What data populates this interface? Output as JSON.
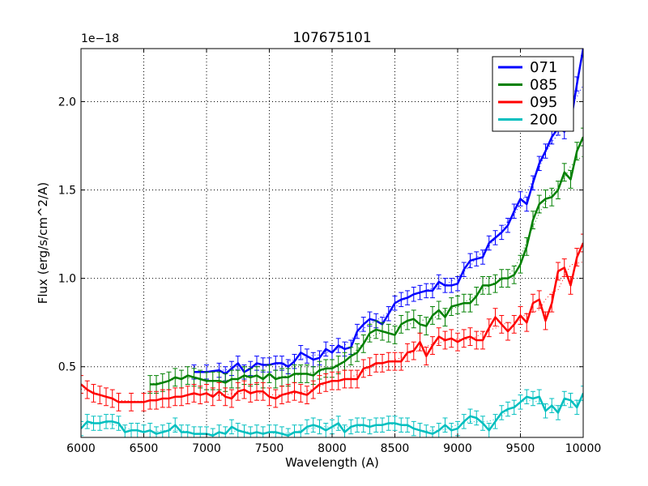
{
  "chart_data": {
    "type": "line",
    "title": "107675101",
    "xlabel": "Wavelength (A)",
    "ylabel": "Flux (erg/s/cm^2/A)",
    "y_scale_label": "1e−18",
    "xlim": [
      6000,
      10000
    ],
    "ylim": [
      0.1,
      2.3
    ],
    "xticks": [
      6000,
      6500,
      7000,
      7500,
      8000,
      8500,
      9000,
      9500,
      10000
    ],
    "xtick_labels": [
      "6000",
      "6500",
      "7000",
      "7500",
      "8000",
      "8500",
      "9000",
      "9500",
      "10000"
    ],
    "yticks": [
      0.5,
      1.0,
      1.5,
      2.0
    ],
    "ytick_labels": [
      "0.5",
      "1.0",
      "1.5",
      "2.0"
    ],
    "grid": true,
    "legend_position": "top-right",
    "series": [
      {
        "name": "071",
        "color": "#0000ff",
        "x": [
          6900,
          7000,
          7100,
          7150,
          7200,
          7250,
          7300,
          7350,
          7400,
          7450,
          7500,
          7550,
          7600,
          7650,
          7700,
          7750,
          7800,
          7850,
          7900,
          7950,
          8000,
          8050,
          8100,
          8150,
          8200,
          8250,
          8300,
          8350,
          8400,
          8450,
          8500,
          8550,
          8600,
          8650,
          8700,
          8750,
          8800,
          8850,
          8900,
          8950,
          9000,
          9050,
          9100,
          9150,
          9200,
          9250,
          9300,
          9350,
          9400,
          9450,
          9500,
          9550,
          9600,
          9650,
          9700,
          9750,
          9800,
          9850,
          9900,
          9950,
          10000
        ],
        "y": [
          0.47,
          0.47,
          0.48,
          0.46,
          0.49,
          0.52,
          0.47,
          0.49,
          0.52,
          0.51,
          0.51,
          0.52,
          0.52,
          0.5,
          0.53,
          0.58,
          0.56,
          0.54,
          0.55,
          0.6,
          0.58,
          0.62,
          0.6,
          0.61,
          0.7,
          0.74,
          0.77,
          0.76,
          0.74,
          0.8,
          0.86,
          0.88,
          0.89,
          0.91,
          0.92,
          0.93,
          0.93,
          0.98,
          0.96,
          0.96,
          0.97,
          1.05,
          1.1,
          1.11,
          1.12,
          1.2,
          1.23,
          1.26,
          1.3,
          1.38,
          1.45,
          1.42,
          1.54,
          1.65,
          1.72,
          1.8,
          1.85,
          1.83,
          1.88,
          2.1,
          2.3
        ],
        "err": 0.04
      },
      {
        "name": "085",
        "color": "#008000",
        "x": [
          6550,
          6600,
          6650,
          6700,
          6750,
          6800,
          6850,
          6900,
          6950,
          7000,
          7050,
          7100,
          7150,
          7200,
          7250,
          7300,
          7350,
          7400,
          7450,
          7500,
          7550,
          7600,
          7650,
          7700,
          7750,
          7800,
          7850,
          7900,
          7950,
          8000,
          8050,
          8100,
          8150,
          8200,
          8250,
          8300,
          8350,
          8400,
          8450,
          8500,
          8550,
          8600,
          8650,
          8700,
          8750,
          8800,
          8850,
          8900,
          8950,
          9000,
          9050,
          9100,
          9150,
          9200,
          9250,
          9300,
          9350,
          9400,
          9450,
          9500,
          9550,
          9600,
          9650,
          9700,
          9750,
          9800,
          9850,
          9900,
          9950,
          10000
        ],
        "y": [
          0.4,
          0.4,
          0.41,
          0.42,
          0.44,
          0.43,
          0.45,
          0.44,
          0.43,
          0.42,
          0.42,
          0.42,
          0.41,
          0.43,
          0.43,
          0.45,
          0.44,
          0.45,
          0.43,
          0.46,
          0.43,
          0.44,
          0.44,
          0.46,
          0.46,
          0.46,
          0.45,
          0.48,
          0.49,
          0.49,
          0.51,
          0.53,
          0.56,
          0.58,
          0.63,
          0.69,
          0.71,
          0.7,
          0.69,
          0.68,
          0.74,
          0.76,
          0.77,
          0.74,
          0.73,
          0.79,
          0.82,
          0.78,
          0.84,
          0.85,
          0.86,
          0.86,
          0.9,
          0.96,
          0.96,
          0.97,
          1.0,
          1.0,
          1.02,
          1.08,
          1.18,
          1.33,
          1.42,
          1.45,
          1.46,
          1.5,
          1.6,
          1.56,
          1.72,
          1.8
        ],
        "err": 0.05
      },
      {
        "name": "095",
        "color": "#ff0000",
        "x": [
          6000,
          6050,
          6100,
          6150,
          6200,
          6250,
          6300,
          6400,
          6500,
          6550,
          6600,
          6650,
          6700,
          6750,
          6800,
          6850,
          6900,
          6950,
          7000,
          7050,
          7100,
          7150,
          7200,
          7250,
          7300,
          7350,
          7400,
          7450,
          7500,
          7550,
          7600,
          7650,
          7700,
          7750,
          7800,
          7850,
          7900,
          7950,
          8000,
          8050,
          8100,
          8150,
          8200,
          8250,
          8300,
          8350,
          8400,
          8450,
          8500,
          8550,
          8600,
          8650,
          8700,
          8750,
          8800,
          8850,
          8900,
          8950,
          9000,
          9050,
          9100,
          9150,
          9200,
          9250,
          9300,
          9350,
          9400,
          9450,
          9500,
          9550,
          9600,
          9650,
          9700,
          9750,
          9800,
          9850,
          9900,
          9950,
          10000
        ],
        "y": [
          0.4,
          0.37,
          0.35,
          0.34,
          0.33,
          0.32,
          0.3,
          0.3,
          0.3,
          0.31,
          0.31,
          0.32,
          0.32,
          0.33,
          0.33,
          0.34,
          0.35,
          0.34,
          0.35,
          0.33,
          0.36,
          0.33,
          0.32,
          0.36,
          0.37,
          0.35,
          0.36,
          0.36,
          0.33,
          0.32,
          0.34,
          0.35,
          0.36,
          0.35,
          0.34,
          0.37,
          0.4,
          0.41,
          0.42,
          0.42,
          0.43,
          0.43,
          0.43,
          0.49,
          0.5,
          0.52,
          0.52,
          0.53,
          0.53,
          0.53,
          0.58,
          0.59,
          0.64,
          0.56,
          0.62,
          0.67,
          0.65,
          0.66,
          0.64,
          0.66,
          0.67,
          0.65,
          0.65,
          0.72,
          0.78,
          0.74,
          0.7,
          0.74,
          0.79,
          0.75,
          0.86,
          0.88,
          0.76,
          0.86,
          1.04,
          1.06,
          0.96,
          1.12,
          1.2
        ],
        "err": 0.05
      },
      {
        "name": "200",
        "color": "#00bfbf",
        "x": [
          6000,
          6050,
          6100,
          6150,
          6200,
          6250,
          6300,
          6350,
          6400,
          6450,
          6500,
          6550,
          6600,
          6650,
          6700,
          6750,
          6800,
          6850,
          6900,
          6950,
          7000,
          7050,
          7100,
          7150,
          7200,
          7250,
          7300,
          7350,
          7400,
          7450,
          7500,
          7550,
          7600,
          7650,
          7700,
          7750,
          7800,
          7850,
          7900,
          7950,
          8000,
          8050,
          8100,
          8150,
          8200,
          8250,
          8300,
          8350,
          8400,
          8450,
          8500,
          8550,
          8600,
          8650,
          8700,
          8750,
          8800,
          8850,
          8900,
          8950,
          9000,
          9050,
          9100,
          9150,
          9200,
          9250,
          9300,
          9350,
          9400,
          9450,
          9500,
          9550,
          9600,
          9650,
          9700,
          9750,
          9800,
          9850,
          9900,
          9950,
          10000
        ],
        "y": [
          0.15,
          0.19,
          0.18,
          0.18,
          0.19,
          0.19,
          0.18,
          0.13,
          0.14,
          0.14,
          0.13,
          0.14,
          0.12,
          0.13,
          0.14,
          0.17,
          0.13,
          0.13,
          0.12,
          0.12,
          0.12,
          0.11,
          0.13,
          0.12,
          0.16,
          0.14,
          0.13,
          0.12,
          0.13,
          0.12,
          0.13,
          0.13,
          0.12,
          0.11,
          0.13,
          0.13,
          0.16,
          0.17,
          0.16,
          0.14,
          0.16,
          0.18,
          0.13,
          0.16,
          0.17,
          0.17,
          0.16,
          0.17,
          0.17,
          0.18,
          0.18,
          0.17,
          0.17,
          0.15,
          0.14,
          0.13,
          0.12,
          0.14,
          0.17,
          0.14,
          0.15,
          0.19,
          0.22,
          0.21,
          0.18,
          0.14,
          0.19,
          0.24,
          0.26,
          0.27,
          0.3,
          0.33,
          0.32,
          0.33,
          0.25,
          0.28,
          0.24,
          0.32,
          0.31,
          0.27,
          0.35
        ],
        "err": 0.04
      }
    ]
  }
}
